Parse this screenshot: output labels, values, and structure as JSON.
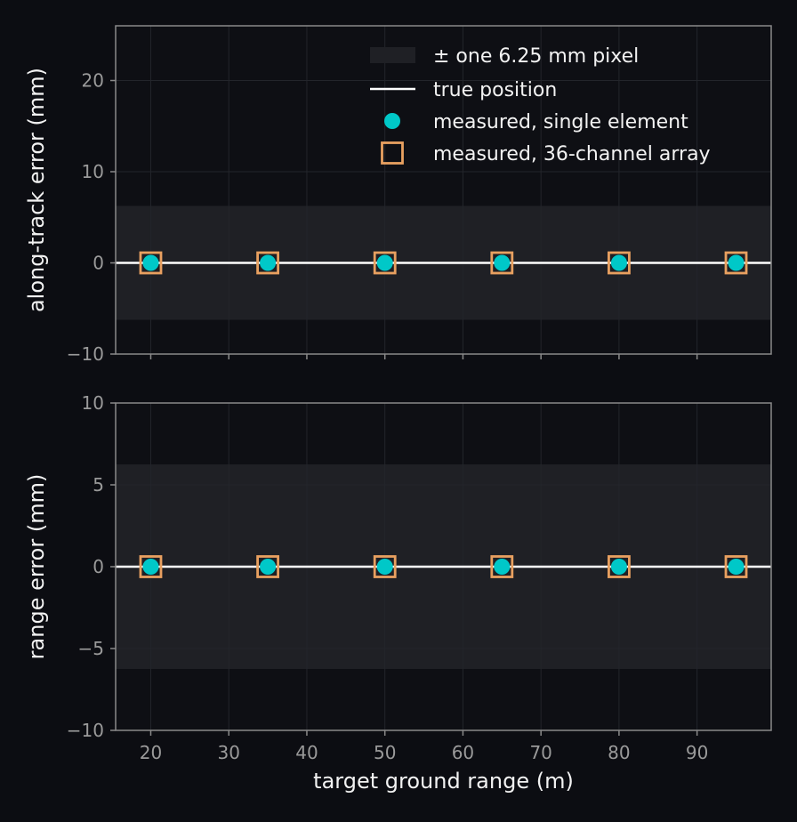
{
  "chart_data": {
    "type": "scatter",
    "x": [
      20,
      35,
      50,
      65,
      80,
      95
    ],
    "xlabel": "target ground range (m)",
    "xlim": [
      15.5,
      99.5
    ],
    "xticks": [
      20,
      30,
      40,
      50,
      60,
      70,
      80,
      90
    ],
    "band_halfwidth_mm": 6.25,
    "grid": true,
    "legend": {
      "placement": "top-right",
      "entries": [
        {
          "label": "± one 6.25 mm pixel",
          "kind": "band"
        },
        {
          "label": "true position",
          "kind": "line"
        },
        {
          "label": "measured, single element",
          "kind": "circle"
        },
        {
          "label": "measured, 36-channel array",
          "kind": "square"
        }
      ]
    },
    "panels": [
      {
        "ylabel": "along-track error (mm)",
        "ylim": [
          -10,
          26
        ],
        "yticks": [
          -10,
          0,
          10,
          20
        ],
        "y_tick_labels": [
          "−10",
          "0",
          "10",
          "20"
        ],
        "series": [
          {
            "name": "true position",
            "values": [
              0,
              0,
              0,
              0,
              0,
              0
            ]
          },
          {
            "name": "measured, single element",
            "values": [
              0,
              0,
              0,
              0,
              0,
              0
            ]
          },
          {
            "name": "measured, 36-channel array",
            "values": [
              0,
              0,
              0,
              0,
              0,
              0
            ]
          }
        ]
      },
      {
        "ylabel": "range error (mm)",
        "ylim": [
          -10,
          10
        ],
        "yticks": [
          -10,
          -5,
          0,
          5,
          10
        ],
        "y_tick_labels": [
          "−10",
          "−5",
          "0",
          "5",
          "10"
        ],
        "series": [
          {
            "name": "true position",
            "values": [
              0,
              0,
              0,
              0,
              0,
              0
            ]
          },
          {
            "name": "measured, single element",
            "values": [
              0,
              0,
              0,
              0,
              0,
              0
            ]
          },
          {
            "name": "measured, 36-channel array",
            "values": [
              0,
              0,
              0,
              0,
              0,
              0
            ]
          }
        ]
      }
    ]
  },
  "colors": {
    "background": "#0c0d12",
    "plot_bg": "#0e0f14",
    "band": "#1f2025",
    "grid": "#23252b",
    "spine": "#8a8a8a",
    "true_line": "#ffffff",
    "single_element": "#00c8c8",
    "array": "#e8a060"
  }
}
